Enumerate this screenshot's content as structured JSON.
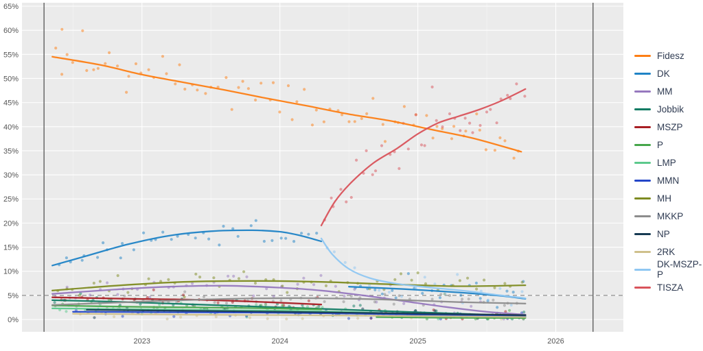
{
  "figure": {
    "background": "#ffffff",
    "panel_background": "#ebebeb",
    "grid_color": "#ffffff",
    "axis_text_color": "#555555",
    "legend_text_color": "#2f3b52",
    "threshold_line_color": "#8f8f8f",
    "election_line_color": "#5e5e5e"
  },
  "axes": {
    "x": {
      "min": 2022.13,
      "max": 2026.49,
      "ticks": [
        2023,
        2024,
        2025,
        2026
      ],
      "tick_labels": [
        "2023",
        "2024",
        "2025",
        "2026"
      ],
      "minor_ticks": [
        2022.5,
        2023.5,
        2024.5,
        2025.5
      ]
    },
    "y": {
      "min": 0,
      "max": 65,
      "step": 5,
      "tick_suffix": "%"
    }
  },
  "chart_data": {
    "type": "line",
    "variant": "poll-scatter-with-trend",
    "title": "",
    "xlabel": "",
    "ylabel": "",
    "ylim": [
      0,
      65
    ],
    "grid": true,
    "legend_position": "right",
    "threshold_y": 5,
    "election_markers_x": [
      2022.29,
      2026.27
    ],
    "series": [
      {
        "name": "Fidesz",
        "color": "#fd7e14",
        "scatter_density": 22,
        "scatter_jitter": 2.2,
        "extra_points": [
          [
            2022.42,
            60.2
          ]
        ],
        "segments": [
          [
            [
              2022.35,
              54.5
            ],
            [
              2022.7,
              52.8
            ],
            [
              2023.0,
              50.8
            ],
            [
              2023.3,
              49.2
            ],
            [
              2023.6,
              47.6
            ],
            [
              2023.9,
              45.9
            ],
            [
              2024.2,
              44.3
            ],
            [
              2024.5,
              42.6
            ],
            [
              2024.8,
              41.2
            ],
            [
              2025.1,
              39.4
            ],
            [
              2025.4,
              37.6
            ],
            [
              2025.75,
              34.8
            ]
          ]
        ]
      },
      {
        "name": "DK",
        "color": "#1f83c6",
        "scatter_density": 18,
        "scatter_jitter": 1.5,
        "segments": [
          [
            [
              2022.35,
              11.2
            ],
            [
              2022.6,
              13.2
            ],
            [
              2022.9,
              15.6
            ],
            [
              2023.2,
              17.4
            ],
            [
              2023.5,
              18.3
            ],
            [
              2023.8,
              18.5
            ],
            [
              2024.0,
              18.2
            ],
            [
              2024.15,
              17.4
            ],
            [
              2024.3,
              16.2
            ]
          ],
          [
            [
              2024.5,
              6.8
            ],
            [
              2024.9,
              6.3
            ],
            [
              2025.3,
              5.6
            ],
            [
              2025.6,
              4.9
            ],
            [
              2025.78,
              4.3
            ]
          ]
        ]
      },
      {
        "name": "MM",
        "color": "#9678be",
        "scatter_density": 14,
        "scatter_jitter": 1.0,
        "segments": [
          [
            [
              2022.35,
              5.3
            ],
            [
              2022.8,
              6.2
            ],
            [
              2023.2,
              6.8
            ],
            [
              2023.6,
              7.0
            ],
            [
              2024.0,
              6.6
            ],
            [
              2024.3,
              6.0
            ],
            [
              2024.6,
              5.0
            ],
            [
              2024.9,
              3.8
            ],
            [
              2025.2,
              2.6
            ],
            [
              2025.5,
              1.6
            ],
            [
              2025.78,
              1.0
            ]
          ]
        ]
      },
      {
        "name": "Jobbik",
        "color": "#0f7b63",
        "scatter_density": 13,
        "scatter_jitter": 0.8,
        "segments": [
          [
            [
              2022.35,
              4.0
            ],
            [
              2022.9,
              3.6
            ],
            [
              2023.4,
              3.1
            ],
            [
              2023.9,
              2.6
            ],
            [
              2024.4,
              2.1
            ],
            [
              2024.9,
              1.6
            ],
            [
              2025.4,
              1.1
            ],
            [
              2025.78,
              0.8
            ]
          ]
        ]
      },
      {
        "name": "MSZP",
        "color": "#a81e24",
        "scatter_density": 13,
        "scatter_jitter": 0.8,
        "segments": [
          [
            [
              2022.35,
              4.6
            ],
            [
              2022.9,
              4.3
            ],
            [
              2023.4,
              4.1
            ],
            [
              2023.9,
              3.6
            ],
            [
              2024.3,
              3.1
            ]
          ],
          [
            [
              2024.6,
              1.4
            ],
            [
              2025.1,
              1.1
            ],
            [
              2025.78,
              0.9
            ]
          ]
        ]
      },
      {
        "name": "P",
        "color": "#46a64a",
        "scatter_density": 12,
        "scatter_jitter": 0.7,
        "segments": [
          [
            [
              2022.35,
              2.9
            ],
            [
              2023.0,
              2.6
            ],
            [
              2023.7,
              2.4
            ],
            [
              2024.3,
              2.1
            ]
          ],
          [
            [
              2024.7,
              0.5
            ],
            [
              2025.2,
              0.35
            ],
            [
              2025.78,
              0.3
            ]
          ]
        ]
      },
      {
        "name": "LMP",
        "color": "#5bc98c",
        "scatter_density": 12,
        "scatter_jitter": 0.7,
        "segments": [
          [
            [
              2022.35,
              2.3
            ],
            [
              2023.0,
              2.1
            ],
            [
              2023.7,
              1.9
            ],
            [
              2024.3,
              1.7
            ],
            [
              2024.9,
              1.2
            ],
            [
              2025.4,
              0.8
            ],
            [
              2025.78,
              0.6
            ]
          ]
        ]
      },
      {
        "name": "MMN",
        "color": "#2446c8",
        "scatter_density": 10,
        "scatter_jitter": 0.6,
        "segments": [
          [
            [
              2022.5,
              1.6
            ],
            [
              2023.2,
              1.5
            ],
            [
              2024.0,
              1.4
            ],
            [
              2024.8,
              1.1
            ],
            [
              2025.78,
              0.6
            ]
          ]
        ]
      },
      {
        "name": "MH",
        "color": "#7e8b21",
        "scatter_density": 16,
        "scatter_jitter": 1.2,
        "segments": [
          [
            [
              2022.35,
              6.0
            ],
            [
              2022.8,
              7.0
            ],
            [
              2023.3,
              7.8
            ],
            [
              2023.8,
              8.0
            ],
            [
              2024.3,
              7.8
            ],
            [
              2024.8,
              7.3
            ],
            [
              2025.3,
              6.9
            ],
            [
              2025.78,
              7.1
            ]
          ]
        ]
      },
      {
        "name": "MKKP",
        "color": "#8c8c8c",
        "scatter_density": 14,
        "scatter_jitter": 0.9,
        "segments": [
          [
            [
              2022.35,
              3.0
            ],
            [
              2022.9,
              3.6
            ],
            [
              2023.4,
              4.1
            ],
            [
              2023.9,
              4.4
            ],
            [
              2024.3,
              4.4
            ],
            [
              2024.8,
              4.1
            ],
            [
              2025.3,
              3.6
            ],
            [
              2025.78,
              3.3
            ]
          ]
        ]
      },
      {
        "name": "NP",
        "color": "#163a52",
        "scatter_density": 8,
        "scatter_jitter": 0.6,
        "segments": [
          [
            [
              2022.6,
              2.0
            ],
            [
              2023.3,
              1.8
            ],
            [
              2024.0,
              1.6
            ],
            [
              2024.8,
              1.3
            ],
            [
              2025.78,
              0.9
            ]
          ]
        ]
      },
      {
        "name": "2RK",
        "color": "#cfc08b",
        "scatter_density": 8,
        "scatter_jitter": 0.5,
        "segments": [
          [
            [
              2022.5,
              1.2
            ],
            [
              2023.3,
              1.0
            ],
            [
              2024.1,
              0.9
            ],
            [
              2025.0,
              0.7
            ],
            [
              2025.78,
              0.5
            ]
          ]
        ]
      },
      {
        "name": "DK-MSZP-P",
        "color": "#8fc7f2",
        "scatter_density": 13,
        "scatter_jitter": 1.3,
        "segments": [
          [
            [
              2024.3,
              16.8
            ],
            [
              2024.38,
              13.5
            ],
            [
              2024.5,
              10.5
            ],
            [
              2024.65,
              8.6
            ],
            [
              2024.85,
              7.4
            ],
            [
              2025.1,
              6.6
            ],
            [
              2025.35,
              5.9
            ],
            [
              2025.6,
              5.0
            ],
            [
              2025.78,
              4.4
            ]
          ]
        ]
      },
      {
        "name": "TISZA",
        "color": "#d9535b",
        "scatter_density": 26,
        "scatter_jitter": 2.4,
        "segments": [
          [
            [
              2024.3,
              19.5
            ],
            [
              2024.4,
              24.5
            ],
            [
              2024.52,
              28.5
            ],
            [
              2024.68,
              32.5
            ],
            [
              2024.85,
              35.5
            ],
            [
              2025.0,
              38.5
            ],
            [
              2025.15,
              40.8
            ],
            [
              2025.3,
              42.2
            ],
            [
              2025.45,
              43.6
            ],
            [
              2025.6,
              45.3
            ],
            [
              2025.78,
              47.8
            ]
          ]
        ]
      }
    ]
  },
  "legend": {
    "position": "right"
  }
}
